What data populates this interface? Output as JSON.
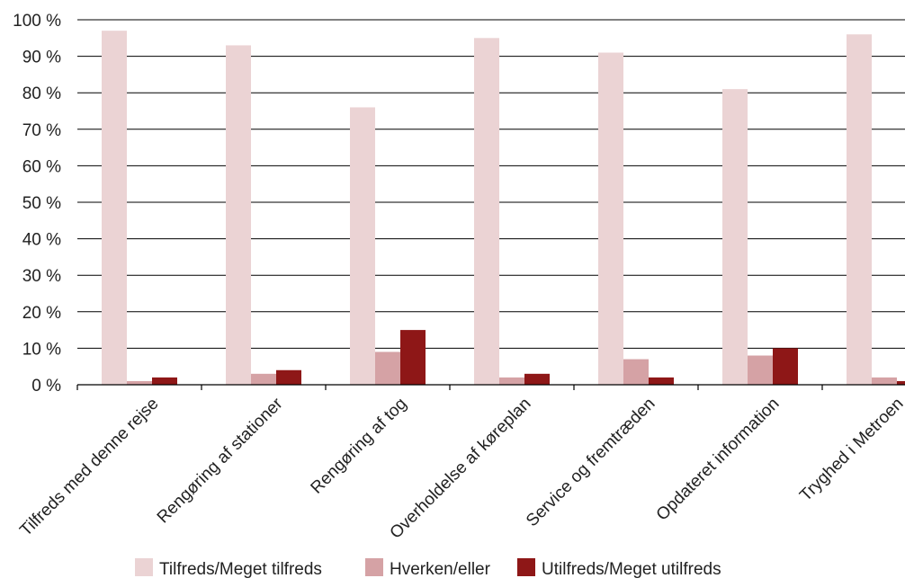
{
  "chart_data": {
    "type": "bar",
    "categories": [
      "Tilfreds med denne rejse",
      "Rengøring af stationer",
      "Rengøring af tog",
      "Overholdelse af køreplan",
      "Service og fremtræden",
      "Opdateret information",
      "Tryghed i Metroen"
    ],
    "series": [
      {
        "name": "Tilfreds/Meget tilfreds",
        "color": "#ebd3d4",
        "values": [
          97,
          93,
          76,
          95,
          91,
          81,
          96
        ]
      },
      {
        "name": "Hverken/eller",
        "color": "#d5a2a5",
        "values": [
          1,
          3,
          9,
          2,
          7,
          8,
          2
        ]
      },
      {
        "name": "Utilfreds/Meget utilfreds",
        "color": "#8e1717",
        "values": [
          2,
          4,
          15,
          3,
          2,
          10,
          1
        ]
      }
    ],
    "y_ticks": [
      "0 %",
      "10 %",
      "20 %",
      "30 %",
      "40 %",
      "50 %",
      "60 %",
      "70 %",
      "80 %",
      "90 %",
      "100 %"
    ],
    "ylim": [
      0,
      100
    ],
    "grid": true,
    "legend_position": "bottom-center",
    "title": "",
    "xlabel": "",
    "ylabel": ""
  }
}
